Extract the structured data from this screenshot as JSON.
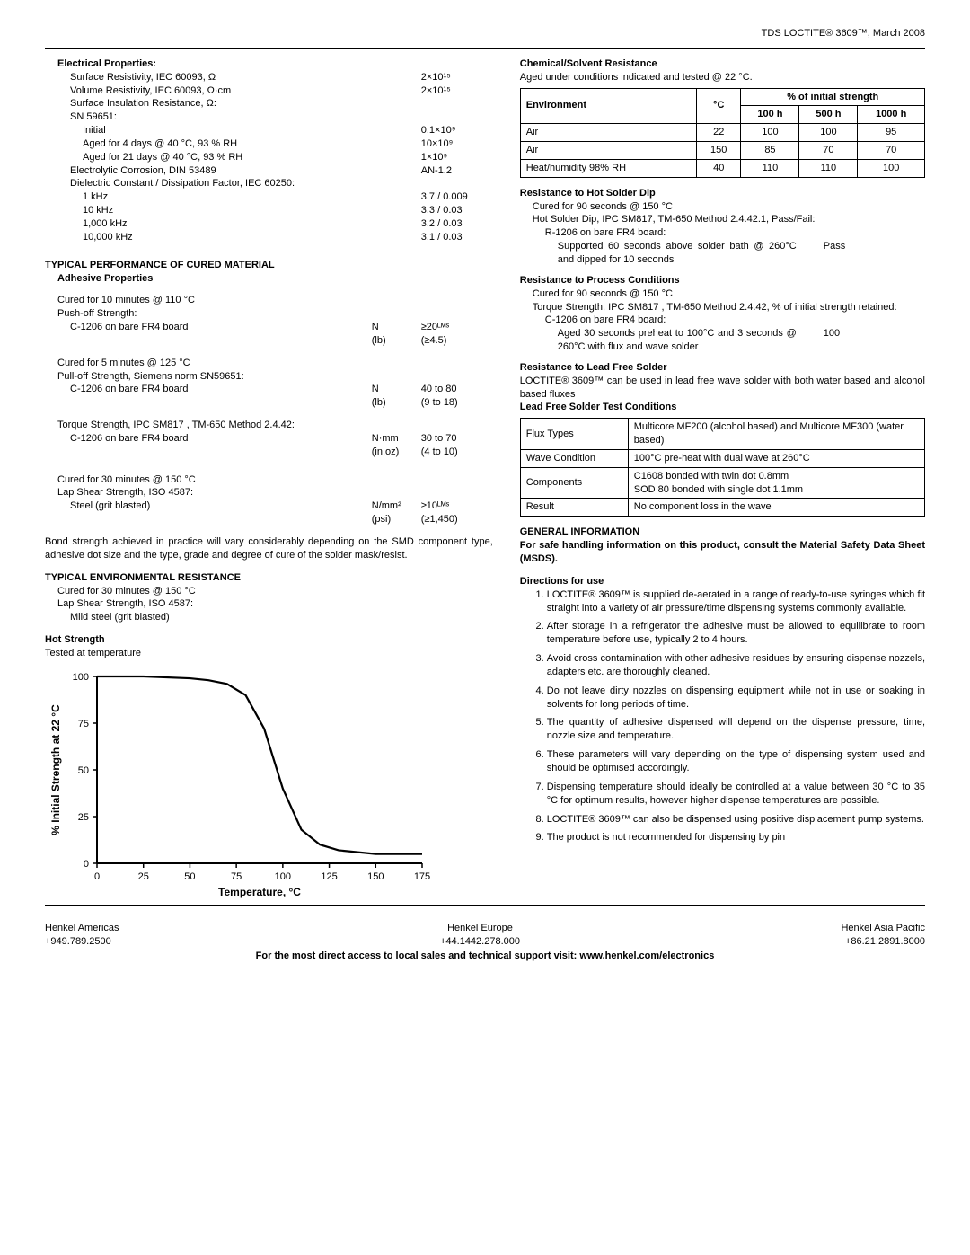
{
  "header": {
    "line": "TDS LOCTITE® 3609™,  March 2008"
  },
  "left": {
    "elec_title": "Electrical Properties:",
    "elec": [
      {
        "l": "Surface Resistivity, IEC 60093, Ω",
        "v": "2×10¹⁵"
      },
      {
        "l": "Volume Resistivity, IEC 60093, Ω·cm",
        "v": "2×10¹⁵"
      }
    ],
    "elec_sir_label": "Surface Insulation Resistance, Ω:",
    "elec_sn": "SN 59651:",
    "elec_sir": [
      {
        "l": "Initial",
        "v": "0.1×10⁹"
      },
      {
        "l": "Aged for 4 days @ 40 °C, 93 % RH",
        "v": "10×10⁹"
      },
      {
        "l": "Aged for 21 days @ 40 °C, 93 % RH",
        "v": "1×10⁹"
      }
    ],
    "elec_corrosion": {
      "l": "Electrolytic Corrosion, DIN 53489",
      "v": "AN-1.2"
    },
    "elec_dcdf_label": "Dielectric Constant / Dissipation Factor, IEC 60250:",
    "elec_dcdf": [
      {
        "l": "1 kHz",
        "v": "3.7 / 0.009"
      },
      {
        "l": "10 kHz",
        "v": "3.3 / 0.03"
      },
      {
        "l": "1,000 kHz",
        "v": "3.2 / 0.03"
      },
      {
        "l": "10,000 kHz",
        "v": "3.1 / 0.03"
      }
    ],
    "perf_title": "TYPICAL PERFORMANCE OF CURED MATERIAL",
    "adh_title": "Adhesive Properties",
    "cured110": "Cured for 10 minutes @ 110 °C",
    "pushoff": "Push-off Strength:",
    "c1206": "C-1206 on bare FR4 board",
    "unit_n": "N",
    "unit_lb": "(lb)",
    "pushoff_n": "≥20ᴸᴹˢ",
    "pushoff_lb": "(≥4.5)",
    "cured125": "Cured for 5 minutes @ 125 °C",
    "pulloff": "Pull-off Strength, Siemens norm SN59651:",
    "pull_n": "40 to 80",
    "pull_lb": "(9 to 18)",
    "torque_label": "Torque Strength, IPC SM817 , TM-650 Method 2.4.42:",
    "unit_nmm": "N·mm",
    "unit_inoz": "(in.oz)",
    "torque_nmm": "30 to 70",
    "torque_inoz": "(4 to 10)",
    "cured150": "Cured for 30 minutes @ 150 °C",
    "lapshear4587": "Lap Shear Strength, ISO 4587:",
    "steel": "Steel (grit blasted)",
    "unit_nmm2": "N/mm²",
    "unit_psi": "(psi)",
    "lapshear_nmm2": "≥10ᴸᴹˢ",
    "lapshear_psi": "(≥1,450)",
    "bond_para": "Bond strength achieved in practice will vary considerably depending on  the SMD component type, adhesive dot size and the type, grade and degree of cure of the solder mask/resist.",
    "env_title": "TYPICAL ENVIRONMENTAL  RESISTANCE",
    "env_cured": "Cured for 30 minutes @ 150 °C",
    "env_lap": "Lap Shear Strength, ISO 4587:",
    "env_steel": "Mild steel (grit blasted)",
    "hot_title": "Hot Strength",
    "hot_sub": "Tested at temperature",
    "chart": {
      "type": "line",
      "ylabel": "% Initial Strength at 22 °C",
      "xlabel": "Temperature, °C",
      "xlim": [
        0,
        175
      ],
      "xtick_step": 25,
      "ylim": [
        0,
        100
      ],
      "ytick_step": 25,
      "line_color": "#000000",
      "line_width": 2.2,
      "axis_color": "#000000",
      "background": "#ffffff",
      "fontsize_axis": 11,
      "fontsize_label": 12,
      "label_weight": "bold",
      "x": [
        0,
        25,
        50,
        60,
        70,
        80,
        90,
        100,
        110,
        120,
        130,
        150,
        175
      ],
      "y": [
        100,
        100,
        99,
        98,
        96,
        90,
        72,
        40,
        18,
        10,
        7,
        5,
        5
      ]
    }
  },
  "right": {
    "chem_title": "Chemical/Solvent Resistance",
    "chem_sub": "Aged under conditions indicated and tested @ 22 °C.",
    "chem_head_pct": "% of initial strength",
    "chem_head": [
      "Environment",
      "°C",
      "100 h",
      "500 h",
      "1000 h"
    ],
    "chem_rows": [
      [
        "Air",
        "22",
        "100",
        "100",
        "95"
      ],
      [
        "Air",
        "150",
        "85",
        "70",
        "70"
      ],
      [
        "Heat/humidity 98% RH",
        "40",
        "110",
        "110",
        "100"
      ]
    ],
    "solder_title": "Resistance to Hot Solder Dip",
    "solder_cured": "Cured for 90 seconds @ 150 °C",
    "solder_method": "Hot Solder Dip, IPC SM817, TM-650 Method 2.4.42.1, Pass/Fail:",
    "solder_board": "R-1206 on bare FR4 board:",
    "solder_cond": "Supported 60 seconds above solder bath @ 260°C and dipped for 10 seconds",
    "solder_result": "Pass",
    "proc_title": "Resistance to Process Conditions",
    "proc_cured": "Cured for 90 seconds @ 150 °C",
    "proc_method": "Torque Strength, IPC SM817 , TM-650 Method 2.4.42, % of initial strength retained:",
    "proc_board": "C-1206 on bare FR4 board:",
    "proc_cond": "Aged 30 seconds preheat to 100°C and 3 seconds @ 260°C with flux and wave solder",
    "proc_result": "100",
    "lead_title": "Resistance to Lead Free Solder",
    "lead_para": "LOCTITE® 3609™ can be used in lead free wave solder with both water based and alcohol based fluxes",
    "lead_table_title": "Lead Free Solder Test Conditions",
    "lead_rows": [
      [
        "Flux Types",
        "Multicore MF200 (alcohol based) and Multicore MF300 (water based)"
      ],
      [
        "Wave Condition",
        "100°C pre-heat with dual wave at 260°C"
      ],
      [
        "Components",
        "C1608 bonded with twin dot 0.8mm\nSOD 80 bonded with single dot 1.1mm"
      ],
      [
        "Result",
        "No component loss in the wave"
      ]
    ],
    "gen_title": "GENERAL INFORMATION",
    "gen_para": "For safe handling information on this product, consult the Material Safety Data Sheet (MSDS).",
    "dir_title": "Directions for use",
    "dir": [
      "LOCTITE® 3609™ is supplied de-aerated in a range of ready-to-use syringes which fit straight into a variety of air pressure/time dispensing systems commonly available.",
      "After storage in a refrigerator the adhesive must be allowed to equilibrate to room temperature before use, typically 2 to 4 hours.",
      "Avoid cross contamination  with other adhesive residues by ensuring dispense nozzels, adapters etc. are thoroughly cleaned.",
      "Do not leave dirty nozzles on dispensing equipment while not in use or soaking in solvents for long periods of time.",
      "The quantity of adhesive dispensed will depend on the dispense pressure, time, nozzle size and temperature.",
      "These parameters will vary depending on the type of dispensing system used and should be optimised accordingly.",
      "Dispensing temperature should ideally be controlled at a value between  30 °C to 35 °C for optimum results, however higher dispense temperatures are possible.",
      "LOCTITE® 3609™ can also be dispensed using positive displacement pump systems.",
      "The product is not recommended for dispensing by pin"
    ]
  },
  "footer": {
    "left1": "Henkel Americas",
    "left2": "+949.789.2500",
    "mid1": "Henkel Europe",
    "mid2": "+44.1442.278.000",
    "right1": "Henkel Asia Pacific",
    "right2": "+86.21.2891.8000",
    "bottom": "For the most direct access to local sales and technical support visit: www.henkel.com/electronics"
  }
}
